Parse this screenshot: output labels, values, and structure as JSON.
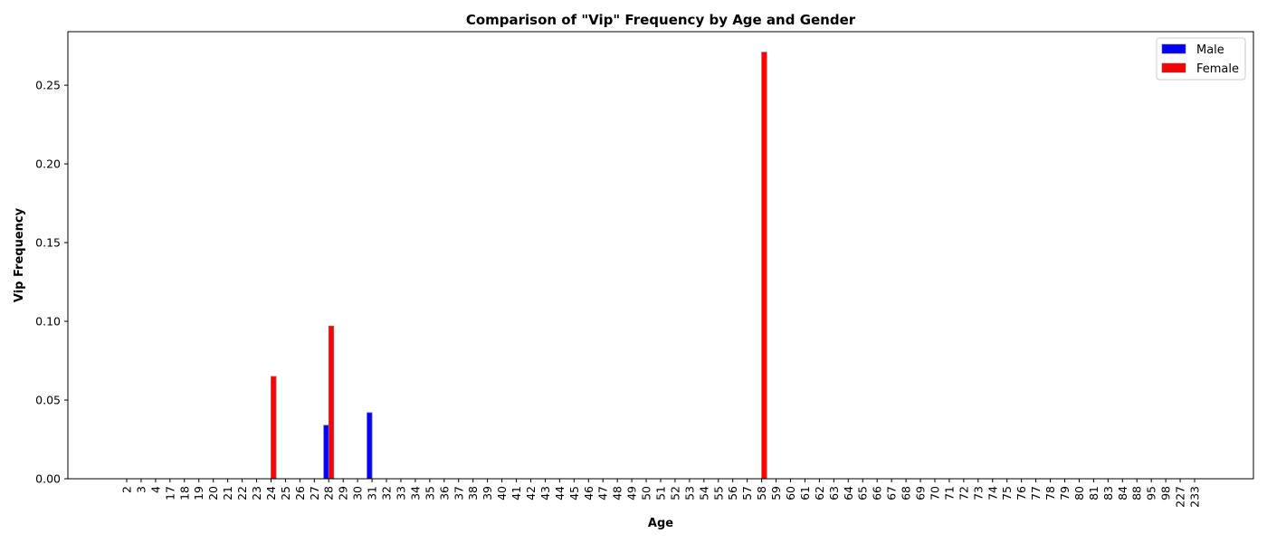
{
  "chart_data": {
    "type": "bar",
    "title": "Comparison of \"Vip\" Frequency by Age and Gender",
    "xlabel": "Age",
    "ylabel": "Vip Frequency",
    "ylim": [
      0,
      0.284
    ],
    "yticks": [
      "0.00",
      "0.05",
      "0.10",
      "0.15",
      "0.20",
      "0.25"
    ],
    "grid": false,
    "legend_position": "top-right",
    "categories": [
      "2",
      "3",
      "4",
      "17",
      "18",
      "19",
      "20",
      "21",
      "22",
      "23",
      "24",
      "25",
      "26",
      "27",
      "28",
      "29",
      "30",
      "31",
      "32",
      "33",
      "34",
      "35",
      "36",
      "37",
      "38",
      "39",
      "40",
      "41",
      "42",
      "43",
      "44",
      "45",
      "46",
      "47",
      "48",
      "49",
      "50",
      "51",
      "52",
      "53",
      "54",
      "55",
      "56",
      "57",
      "58",
      "59",
      "60",
      "61",
      "62",
      "63",
      "64",
      "65",
      "66",
      "67",
      "68",
      "69",
      "70",
      "71",
      "72",
      "73",
      "74",
      "75",
      "76",
      "77",
      "78",
      "79",
      "80",
      "81",
      "83",
      "84",
      "88",
      "95",
      "98",
      "227",
      "233"
    ],
    "series": [
      {
        "name": "Male",
        "color": "#0000ff",
        "values": [
          0,
          0,
          0,
          0,
          0,
          0,
          0,
          0,
          0,
          0,
          0,
          0,
          0,
          0,
          0.034,
          0,
          0,
          0.042,
          0,
          0,
          0,
          0,
          0,
          0,
          0,
          0,
          0,
          0,
          0,
          0,
          0,
          0,
          0,
          0,
          0,
          0,
          0,
          0,
          0,
          0,
          0,
          0,
          0,
          0,
          0,
          0,
          0,
          0,
          0,
          0,
          0,
          0,
          0,
          0,
          0,
          0,
          0,
          0,
          0,
          0,
          0,
          0,
          0,
          0,
          0,
          0,
          0,
          0,
          0,
          0,
          0,
          0,
          0,
          0,
          0
        ]
      },
      {
        "name": "Female",
        "color": "#ff0000",
        "values": [
          0,
          0,
          0,
          0,
          0,
          0,
          0,
          0,
          0,
          0,
          0.065,
          0,
          0,
          0,
          0.097,
          0,
          0,
          0,
          0,
          0,
          0,
          0,
          0,
          0,
          0,
          0,
          0,
          0,
          0,
          0,
          0,
          0,
          0,
          0,
          0,
          0,
          0,
          0,
          0,
          0,
          0,
          0,
          0,
          0,
          0.271,
          0,
          0,
          0,
          0,
          0,
          0,
          0,
          0,
          0,
          0,
          0,
          0,
          0,
          0,
          0,
          0,
          0,
          0,
          0,
          0,
          0,
          0,
          0,
          0,
          0,
          0,
          0,
          0,
          0,
          0
        ]
      }
    ]
  }
}
